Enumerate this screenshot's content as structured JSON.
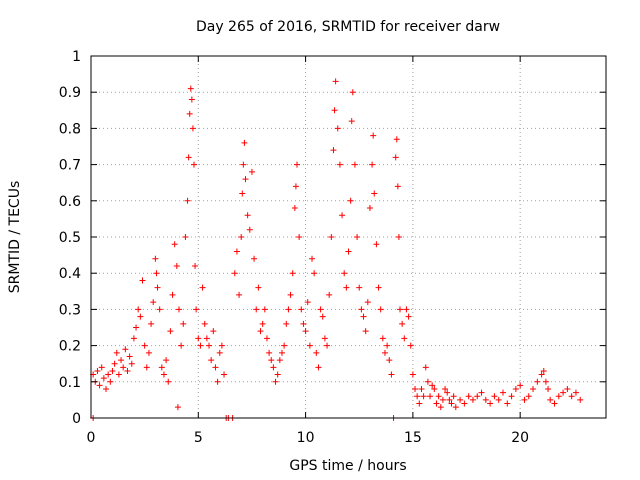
{
  "chart_data": {
    "type": "scatter",
    "title": "Day 265 of 2016, SRMTID for receiver darw",
    "xlabel": "GPS time / hours",
    "ylabel": "SRMTID / TECUs",
    "xlim": [
      0,
      24
    ],
    "ylim": [
      0,
      1
    ],
    "xticks": [
      0,
      5,
      10,
      15,
      20
    ],
    "yticks": [
      0,
      0.1,
      0.2,
      0.3,
      0.4,
      0.5,
      0.6,
      0.7,
      0.8,
      0.9,
      1
    ],
    "xtick_labels": [
      "0",
      "5",
      "10",
      "15",
      "20"
    ],
    "ytick_labels": [
      "0",
      "0.1",
      "0.2",
      "0.3",
      "0.4",
      "0.5",
      "0.6",
      "0.7",
      "0.8",
      "0.9",
      "1"
    ],
    "grid": true,
    "marker": "+",
    "color": "#ff0000",
    "series": [
      {
        "name": "SRMTID",
        "points": [
          [
            0.1,
            0.0
          ],
          [
            0.1,
            0.12
          ],
          [
            0.2,
            0.1
          ],
          [
            0.3,
            0.13
          ],
          [
            0.4,
            0.09
          ],
          [
            0.5,
            0.14
          ],
          [
            0.6,
            0.11
          ],
          [
            0.7,
            0.08
          ],
          [
            0.8,
            0.12
          ],
          [
            0.9,
            0.1
          ],
          [
            1.0,
            0.13
          ],
          [
            1.1,
            0.15
          ],
          [
            1.2,
            0.18
          ],
          [
            1.3,
            0.12
          ],
          [
            1.4,
            0.16
          ],
          [
            1.5,
            0.14
          ],
          [
            1.6,
            0.19
          ],
          [
            1.7,
            0.13
          ],
          [
            1.8,
            0.17
          ],
          [
            1.9,
            0.15
          ],
          [
            2.0,
            0.22
          ],
          [
            2.1,
            0.25
          ],
          [
            2.2,
            0.3
          ],
          [
            2.3,
            0.28
          ],
          [
            2.4,
            0.38
          ],
          [
            2.5,
            0.2
          ],
          [
            2.6,
            0.14
          ],
          [
            2.7,
            0.18
          ],
          [
            2.8,
            0.26
          ],
          [
            2.9,
            0.32
          ],
          [
            3.0,
            0.44
          ],
          [
            3.05,
            0.4
          ],
          [
            3.1,
            0.36
          ],
          [
            3.2,
            0.3
          ],
          [
            3.3,
            0.14
          ],
          [
            3.4,
            0.12
          ],
          [
            3.5,
            0.16
          ],
          [
            3.6,
            0.1
          ],
          [
            3.7,
            0.24
          ],
          [
            3.8,
            0.34
          ],
          [
            3.9,
            0.48
          ],
          [
            4.0,
            0.42
          ],
          [
            4.05,
            0.03
          ],
          [
            4.1,
            0.3
          ],
          [
            4.2,
            0.2
          ],
          [
            4.3,
            0.26
          ],
          [
            4.4,
            0.5
          ],
          [
            4.5,
            0.6
          ],
          [
            4.55,
            0.72
          ],
          [
            4.6,
            0.84
          ],
          [
            4.65,
            0.91
          ],
          [
            4.7,
            0.88
          ],
          [
            4.75,
            0.8
          ],
          [
            4.8,
            0.7
          ],
          [
            4.85,
            0.42
          ],
          [
            4.9,
            0.3
          ],
          [
            5.0,
            0.22
          ],
          [
            5.1,
            0.2
          ],
          [
            5.2,
            0.36
          ],
          [
            5.3,
            0.26
          ],
          [
            5.4,
            0.22
          ],
          [
            5.5,
            0.2
          ],
          [
            5.6,
            0.16
          ],
          [
            5.7,
            0.24
          ],
          [
            5.8,
            0.14
          ],
          [
            5.9,
            0.1
          ],
          [
            6.0,
            0.18
          ],
          [
            6.1,
            0.2
          ],
          [
            6.2,
            0.12
          ],
          [
            6.3,
            0.0
          ],
          [
            6.4,
            0.0
          ],
          [
            6.6,
            0.0
          ],
          [
            6.7,
            0.4
          ],
          [
            6.8,
            0.46
          ],
          [
            6.9,
            0.34
          ],
          [
            7.0,
            0.5
          ],
          [
            7.05,
            0.62
          ],
          [
            7.1,
            0.7
          ],
          [
            7.15,
            0.76
          ],
          [
            7.2,
            0.66
          ],
          [
            7.3,
            0.56
          ],
          [
            7.4,
            0.52
          ],
          [
            7.5,
            0.68
          ],
          [
            7.6,
            0.44
          ],
          [
            7.7,
            0.3
          ],
          [
            7.8,
            0.36
          ],
          [
            7.9,
            0.24
          ],
          [
            8.0,
            0.26
          ],
          [
            8.1,
            0.3
          ],
          [
            8.2,
            0.22
          ],
          [
            8.3,
            0.18
          ],
          [
            8.4,
            0.16
          ],
          [
            8.5,
            0.14
          ],
          [
            8.6,
            0.1
          ],
          [
            8.7,
            0.12
          ],
          [
            8.8,
            0.16
          ],
          [
            8.9,
            0.18
          ],
          [
            9.0,
            0.2
          ],
          [
            9.1,
            0.26
          ],
          [
            9.2,
            0.3
          ],
          [
            9.3,
            0.34
          ],
          [
            9.4,
            0.4
          ],
          [
            9.5,
            0.58
          ],
          [
            9.55,
            0.64
          ],
          [
            9.6,
            0.7
          ],
          [
            9.7,
            0.5
          ],
          [
            9.8,
            0.3
          ],
          [
            9.9,
            0.26
          ],
          [
            10.0,
            0.24
          ],
          [
            10.1,
            0.32
          ],
          [
            10.2,
            0.2
          ],
          [
            10.3,
            0.44
          ],
          [
            10.4,
            0.4
          ],
          [
            10.5,
            0.18
          ],
          [
            10.6,
            0.14
          ],
          [
            10.7,
            0.3
          ],
          [
            10.8,
            0.28
          ],
          [
            10.9,
            0.22
          ],
          [
            11.0,
            0.2
          ],
          [
            11.1,
            0.34
          ],
          [
            11.2,
            0.5
          ],
          [
            11.3,
            0.74
          ],
          [
            11.35,
            0.85
          ],
          [
            11.4,
            0.93
          ],
          [
            11.5,
            0.8
          ],
          [
            11.6,
            0.7
          ],
          [
            11.7,
            0.56
          ],
          [
            11.8,
            0.4
          ],
          [
            11.9,
            0.36
          ],
          [
            12.0,
            0.46
          ],
          [
            12.1,
            0.6
          ],
          [
            12.15,
            0.82
          ],
          [
            12.2,
            0.9
          ],
          [
            12.3,
            0.7
          ],
          [
            12.4,
            0.5
          ],
          [
            12.5,
            0.36
          ],
          [
            12.6,
            0.3
          ],
          [
            12.7,
            0.28
          ],
          [
            12.8,
            0.24
          ],
          [
            12.9,
            0.32
          ],
          [
            13.0,
            0.58
          ],
          [
            13.1,
            0.7
          ],
          [
            13.15,
            0.78
          ],
          [
            13.2,
            0.62
          ],
          [
            13.3,
            0.48
          ],
          [
            13.4,
            0.36
          ],
          [
            13.5,
            0.3
          ],
          [
            13.6,
            0.22
          ],
          [
            13.7,
            0.18
          ],
          [
            13.8,
            0.2
          ],
          [
            13.9,
            0.16
          ],
          [
            14.0,
            0.12
          ],
          [
            14.1,
            0.0
          ],
          [
            14.2,
            0.72
          ],
          [
            14.25,
            0.77
          ],
          [
            14.3,
            0.64
          ],
          [
            14.35,
            0.5
          ],
          [
            14.4,
            0.3
          ],
          [
            14.5,
            0.26
          ],
          [
            14.6,
            0.22
          ],
          [
            14.7,
            0.3
          ],
          [
            14.8,
            0.28
          ],
          [
            14.9,
            0.2
          ],
          [
            15.0,
            0.12
          ],
          [
            15.1,
            0.08
          ],
          [
            15.2,
            0.06
          ],
          [
            15.3,
            0.04
          ],
          [
            15.4,
            0.08
          ],
          [
            15.5,
            0.06
          ],
          [
            15.6,
            0.14
          ],
          [
            15.7,
            0.1
          ],
          [
            15.8,
            0.06
          ],
          [
            15.9,
            0.09
          ],
          [
            16.0,
            0.08
          ],
          [
            16.1,
            0.04
          ],
          [
            16.2,
            0.06
          ],
          [
            16.3,
            0.03
          ],
          [
            16.4,
            0.05
          ],
          [
            16.5,
            0.08
          ],
          [
            16.6,
            0.07
          ],
          [
            16.7,
            0.05
          ],
          [
            16.8,
            0.04
          ],
          [
            16.9,
            0.06
          ],
          [
            17.0,
            0.03
          ],
          [
            17.2,
            0.05
          ],
          [
            17.4,
            0.04
          ],
          [
            17.6,
            0.06
          ],
          [
            17.8,
            0.05
          ],
          [
            18.0,
            0.06
          ],
          [
            18.2,
            0.07
          ],
          [
            18.4,
            0.05
          ],
          [
            18.6,
            0.04
          ],
          [
            18.8,
            0.06
          ],
          [
            19.0,
            0.05
          ],
          [
            19.2,
            0.07
          ],
          [
            19.4,
            0.04
          ],
          [
            19.6,
            0.06
          ],
          [
            19.8,
            0.08
          ],
          [
            20.0,
            0.09
          ],
          [
            20.2,
            0.05
          ],
          [
            20.4,
            0.06
          ],
          [
            20.6,
            0.08
          ],
          [
            20.8,
            0.1
          ],
          [
            21.0,
            0.12
          ],
          [
            21.1,
            0.13
          ],
          [
            21.2,
            0.1
          ],
          [
            21.3,
            0.08
          ],
          [
            21.4,
            0.05
          ],
          [
            21.6,
            0.04
          ],
          [
            21.8,
            0.06
          ],
          [
            22.0,
            0.07
          ],
          [
            22.2,
            0.08
          ],
          [
            22.4,
            0.06
          ],
          [
            22.6,
            0.07
          ],
          [
            22.8,
            0.05
          ]
        ]
      }
    ]
  }
}
